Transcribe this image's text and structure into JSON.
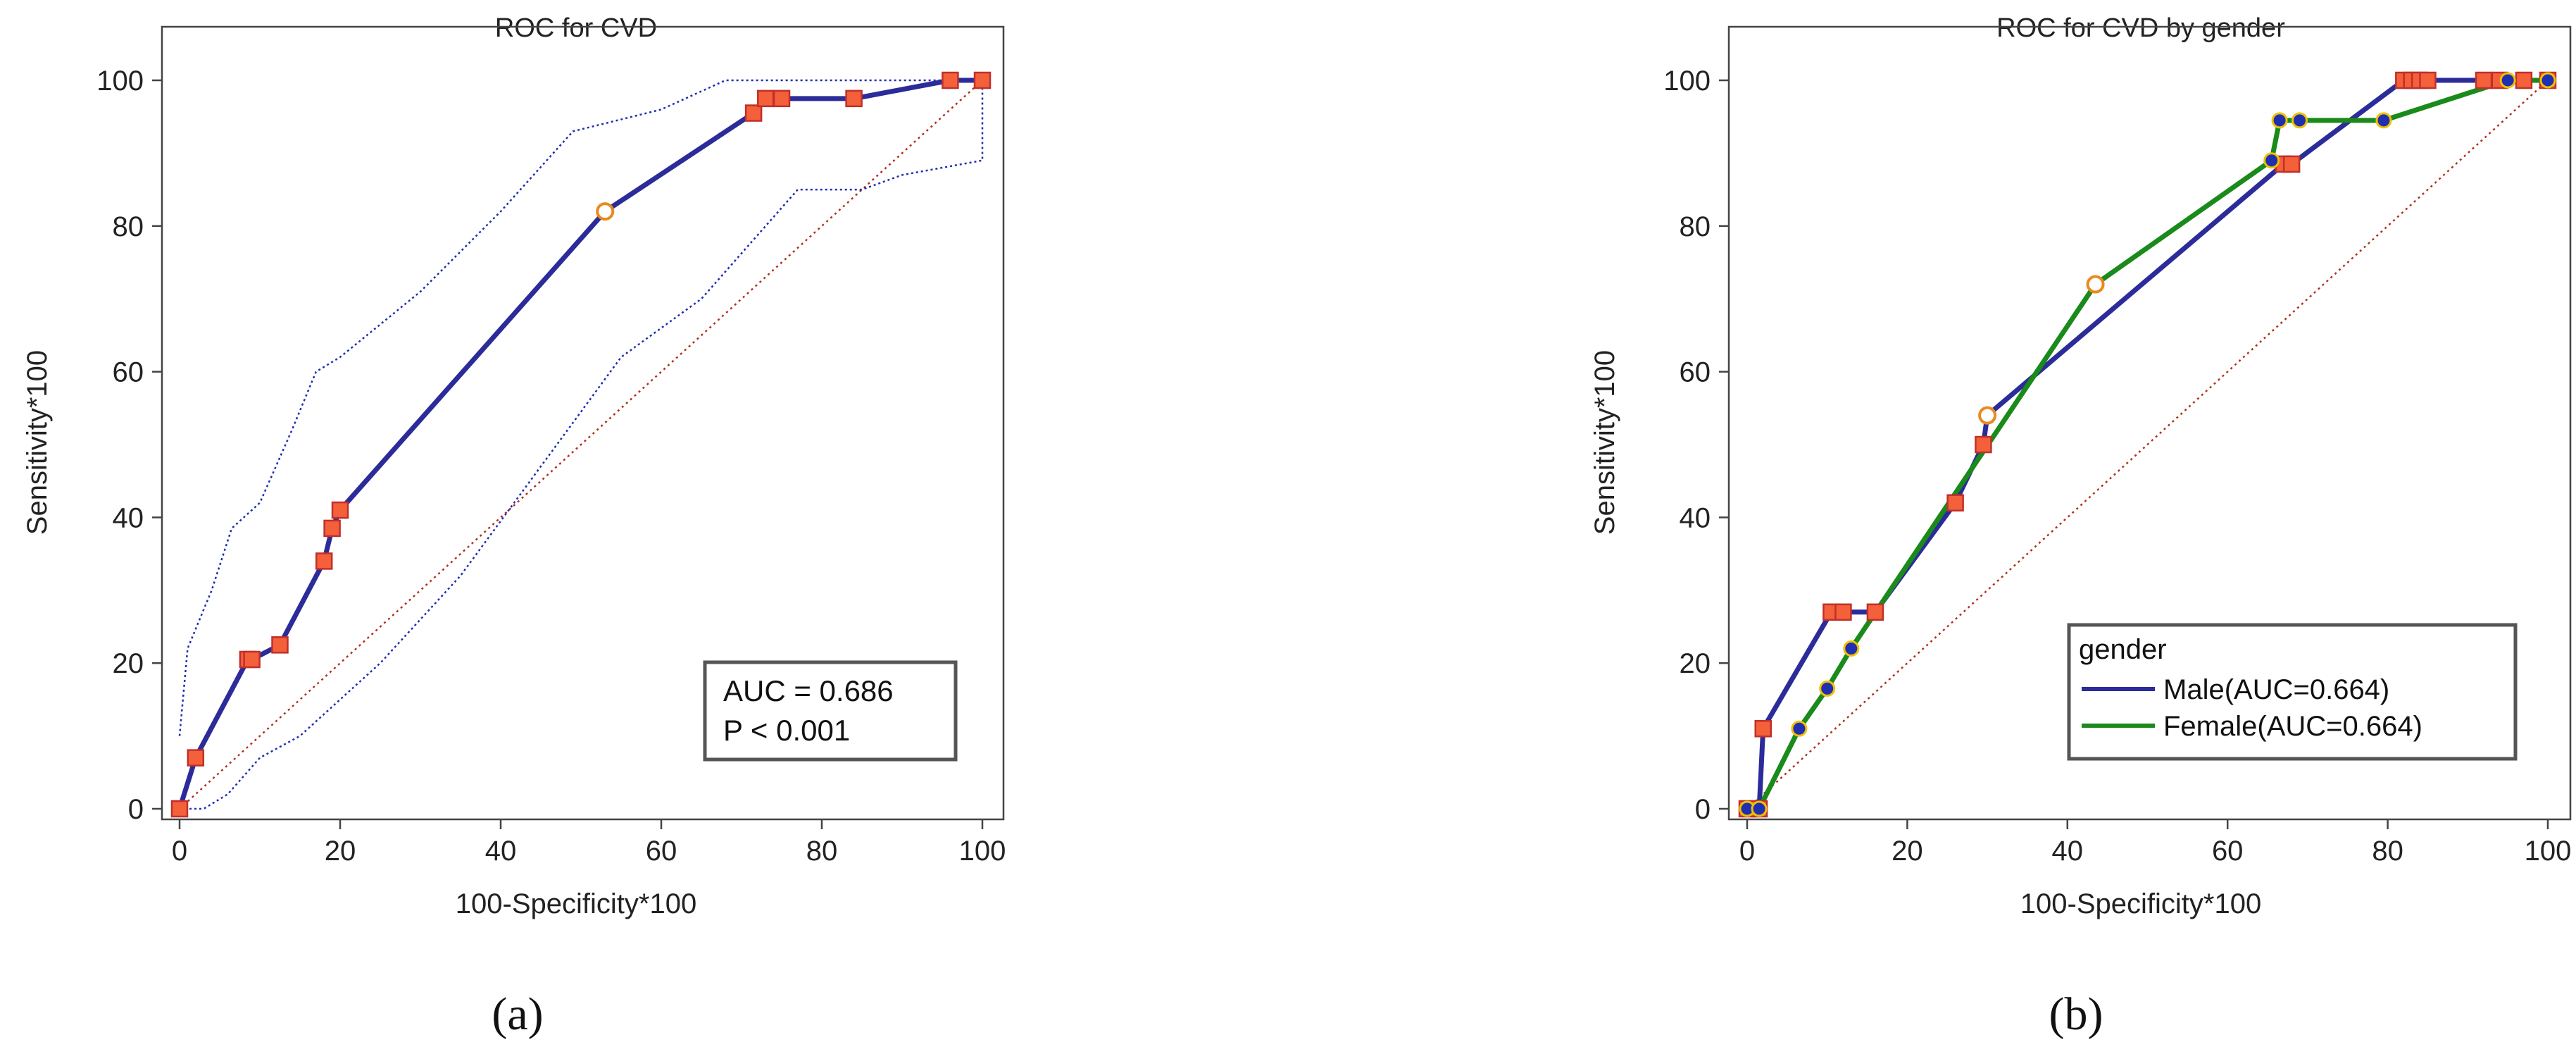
{
  "chart_data": [
    {
      "panel": "a",
      "type": "line",
      "title": "ROC for CVD",
      "xlabel": "100-Specificity*100",
      "ylabel": "Sensitivity*100",
      "subfigure_label": "(a)",
      "xlim": [
        0,
        100
      ],
      "ylim": [
        0,
        100
      ],
      "xticks": [
        "0",
        "20",
        "40",
        "60",
        "80",
        "100"
      ],
      "yticks": [
        "0",
        "20",
        "40",
        "60",
        "80",
        "100"
      ],
      "grid": false,
      "colors": {
        "roc": "#2b2b9a",
        "marker_fill": "#f4603a",
        "marker_edge": "#c0302a",
        "ci": "#1f2fb0",
        "diagonal": "#b03020",
        "optimal_edge": "#e98a1e"
      },
      "series": [
        {
          "x": [
            0,
            2,
            8.5,
            9,
            12.5,
            18,
            19,
            20,
            53,
            71.5,
            73,
            75,
            84,
            96,
            100
          ],
          "y": [
            0,
            7,
            20.5,
            20.5,
            22.5,
            34,
            38.5,
            41,
            82,
            95.5,
            97.5,
            97.5,
            97.5,
            100,
            100
          ]
        }
      ],
      "optimal_point": {
        "x": 53,
        "y": 82
      },
      "ci_upper": {
        "x": [
          0,
          1,
          4,
          6.5,
          10,
          14,
          17,
          20,
          30,
          40,
          49,
          60,
          68,
          80,
          90,
          100
        ],
        "y": [
          10,
          22,
          30,
          38.5,
          42,
          52,
          60,
          62,
          71,
          82,
          93,
          96,
          100,
          100,
          100,
          100
        ]
      },
      "ci_lower": {
        "x": [
          0,
          3,
          6,
          10,
          15,
          20,
          25,
          35,
          45,
          55,
          65,
          73,
          77,
          80,
          85,
          90,
          100,
          100
        ],
        "y": [
          0,
          0,
          2,
          7,
          10,
          15,
          20,
          32,
          47,
          62,
          70,
          80,
          85,
          85,
          85,
          87,
          89,
          100
        ]
      },
      "diagonal": [
        [
          0,
          0
        ],
        [
          100,
          100
        ]
      ],
      "annotation": [
        "AUC = 0.686",
        "P < 0.001"
      ]
    },
    {
      "panel": "b",
      "type": "line",
      "title": "ROC for CVD by gender",
      "xlabel": "100-Specificity*100",
      "ylabel": "Sensitivity*100",
      "subfigure_label": "(b)",
      "xlim": [
        0,
        100
      ],
      "ylim": [
        0,
        100
      ],
      "xticks": [
        "0",
        "20",
        "40",
        "60",
        "80",
        "100"
      ],
      "yticks": [
        "0",
        "20",
        "40",
        "60",
        "80",
        "100"
      ],
      "grid": false,
      "legend": {
        "title": "gender",
        "position": "bottom-right"
      },
      "series": [
        {
          "name": "Male(AUC=0.664)",
          "color": "#2b2b9a",
          "marker": "square",
          "marker_fill": "#f4603a",
          "x": [
            0,
            1.5,
            2,
            10.5,
            12,
            16,
            26,
            29.5,
            30,
            67,
            68,
            82,
            83,
            84,
            85,
            92,
            94,
            97,
            100
          ],
          "y": [
            0,
            0,
            11,
            27,
            27,
            27,
            42,
            50,
            54,
            88.5,
            88.5,
            100,
            100,
            100,
            100,
            100,
            100,
            100,
            100
          ],
          "optimal_point": {
            "x": 30,
            "y": 54
          }
        },
        {
          "name": "Female(AUC=0.664)",
          "color": "#1a8a1a",
          "marker": "circle",
          "marker_fill": "#1f2fb0",
          "marker_edge": "#f0c000",
          "x": [
            0,
            1.5,
            6.5,
            10,
            13,
            43.5,
            65.5,
            66.5,
            69,
            79.5,
            95,
            100
          ],
          "y": [
            0,
            0,
            11,
            16.5,
            22,
            72,
            89,
            94.5,
            94.5,
            94.5,
            100,
            100
          ],
          "optimal_point": {
            "x": 43.5,
            "y": 72
          }
        }
      ],
      "diagonal": [
        [
          0,
          0
        ],
        [
          100,
          100
        ]
      ]
    }
  ]
}
